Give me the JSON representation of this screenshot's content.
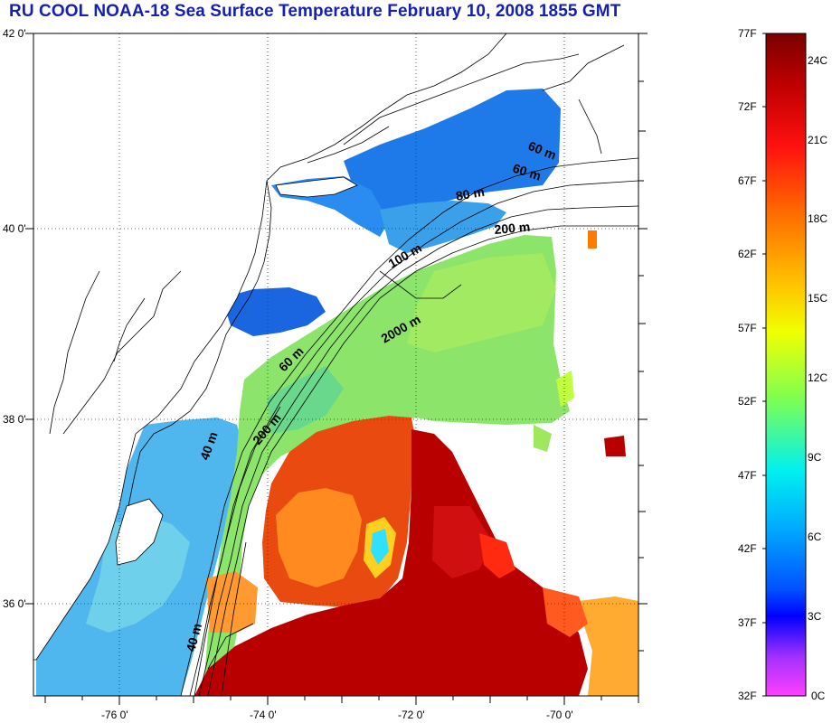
{
  "title": "RU COOL  NOAA-18 Sea Surface Temperature February 10, 2008 1855 GMT",
  "map": {
    "lat_labels": [
      "42 0'",
      "40 0'",
      "38 0'",
      "36 0'"
    ],
    "lon_labels": [
      "-76 0'",
      "-74 0'",
      "-72 0'",
      "-70 0'"
    ],
    "contour_labels": [
      "60 m",
      "60 m",
      "80 m",
      "200 m",
      "100 m",
      "2000 m",
      "60 m",
      "200 m",
      "40 m",
      "40 m"
    ]
  },
  "colorbar": {
    "fahrenheit_labels": [
      "77F",
      "72F",
      "67F",
      "62F",
      "57F",
      "52F",
      "47F",
      "42F",
      "37F",
      "32F"
    ],
    "celsius_labels": [
      "24C",
      "21C",
      "18C",
      "15C",
      "12C",
      "9C",
      "6C",
      "3C",
      "0C"
    ],
    "colors": [
      "#800000",
      "#e00000",
      "#ff3000",
      "#ff8000",
      "#ffc000",
      "#ffff00",
      "#80ff40",
      "#00ffe0",
      "#00a0ff",
      "#0040ff",
      "#0000ff",
      "#a000ff",
      "#ff40ff"
    ]
  },
  "colors": {
    "title": "#1520b0",
    "cold_water": "#1e7ae8",
    "mid_shelf": "#4fb6ee",
    "slope": "#8de46a",
    "gulf_stream": "#b80000",
    "warm_core": "#e84a10"
  }
}
